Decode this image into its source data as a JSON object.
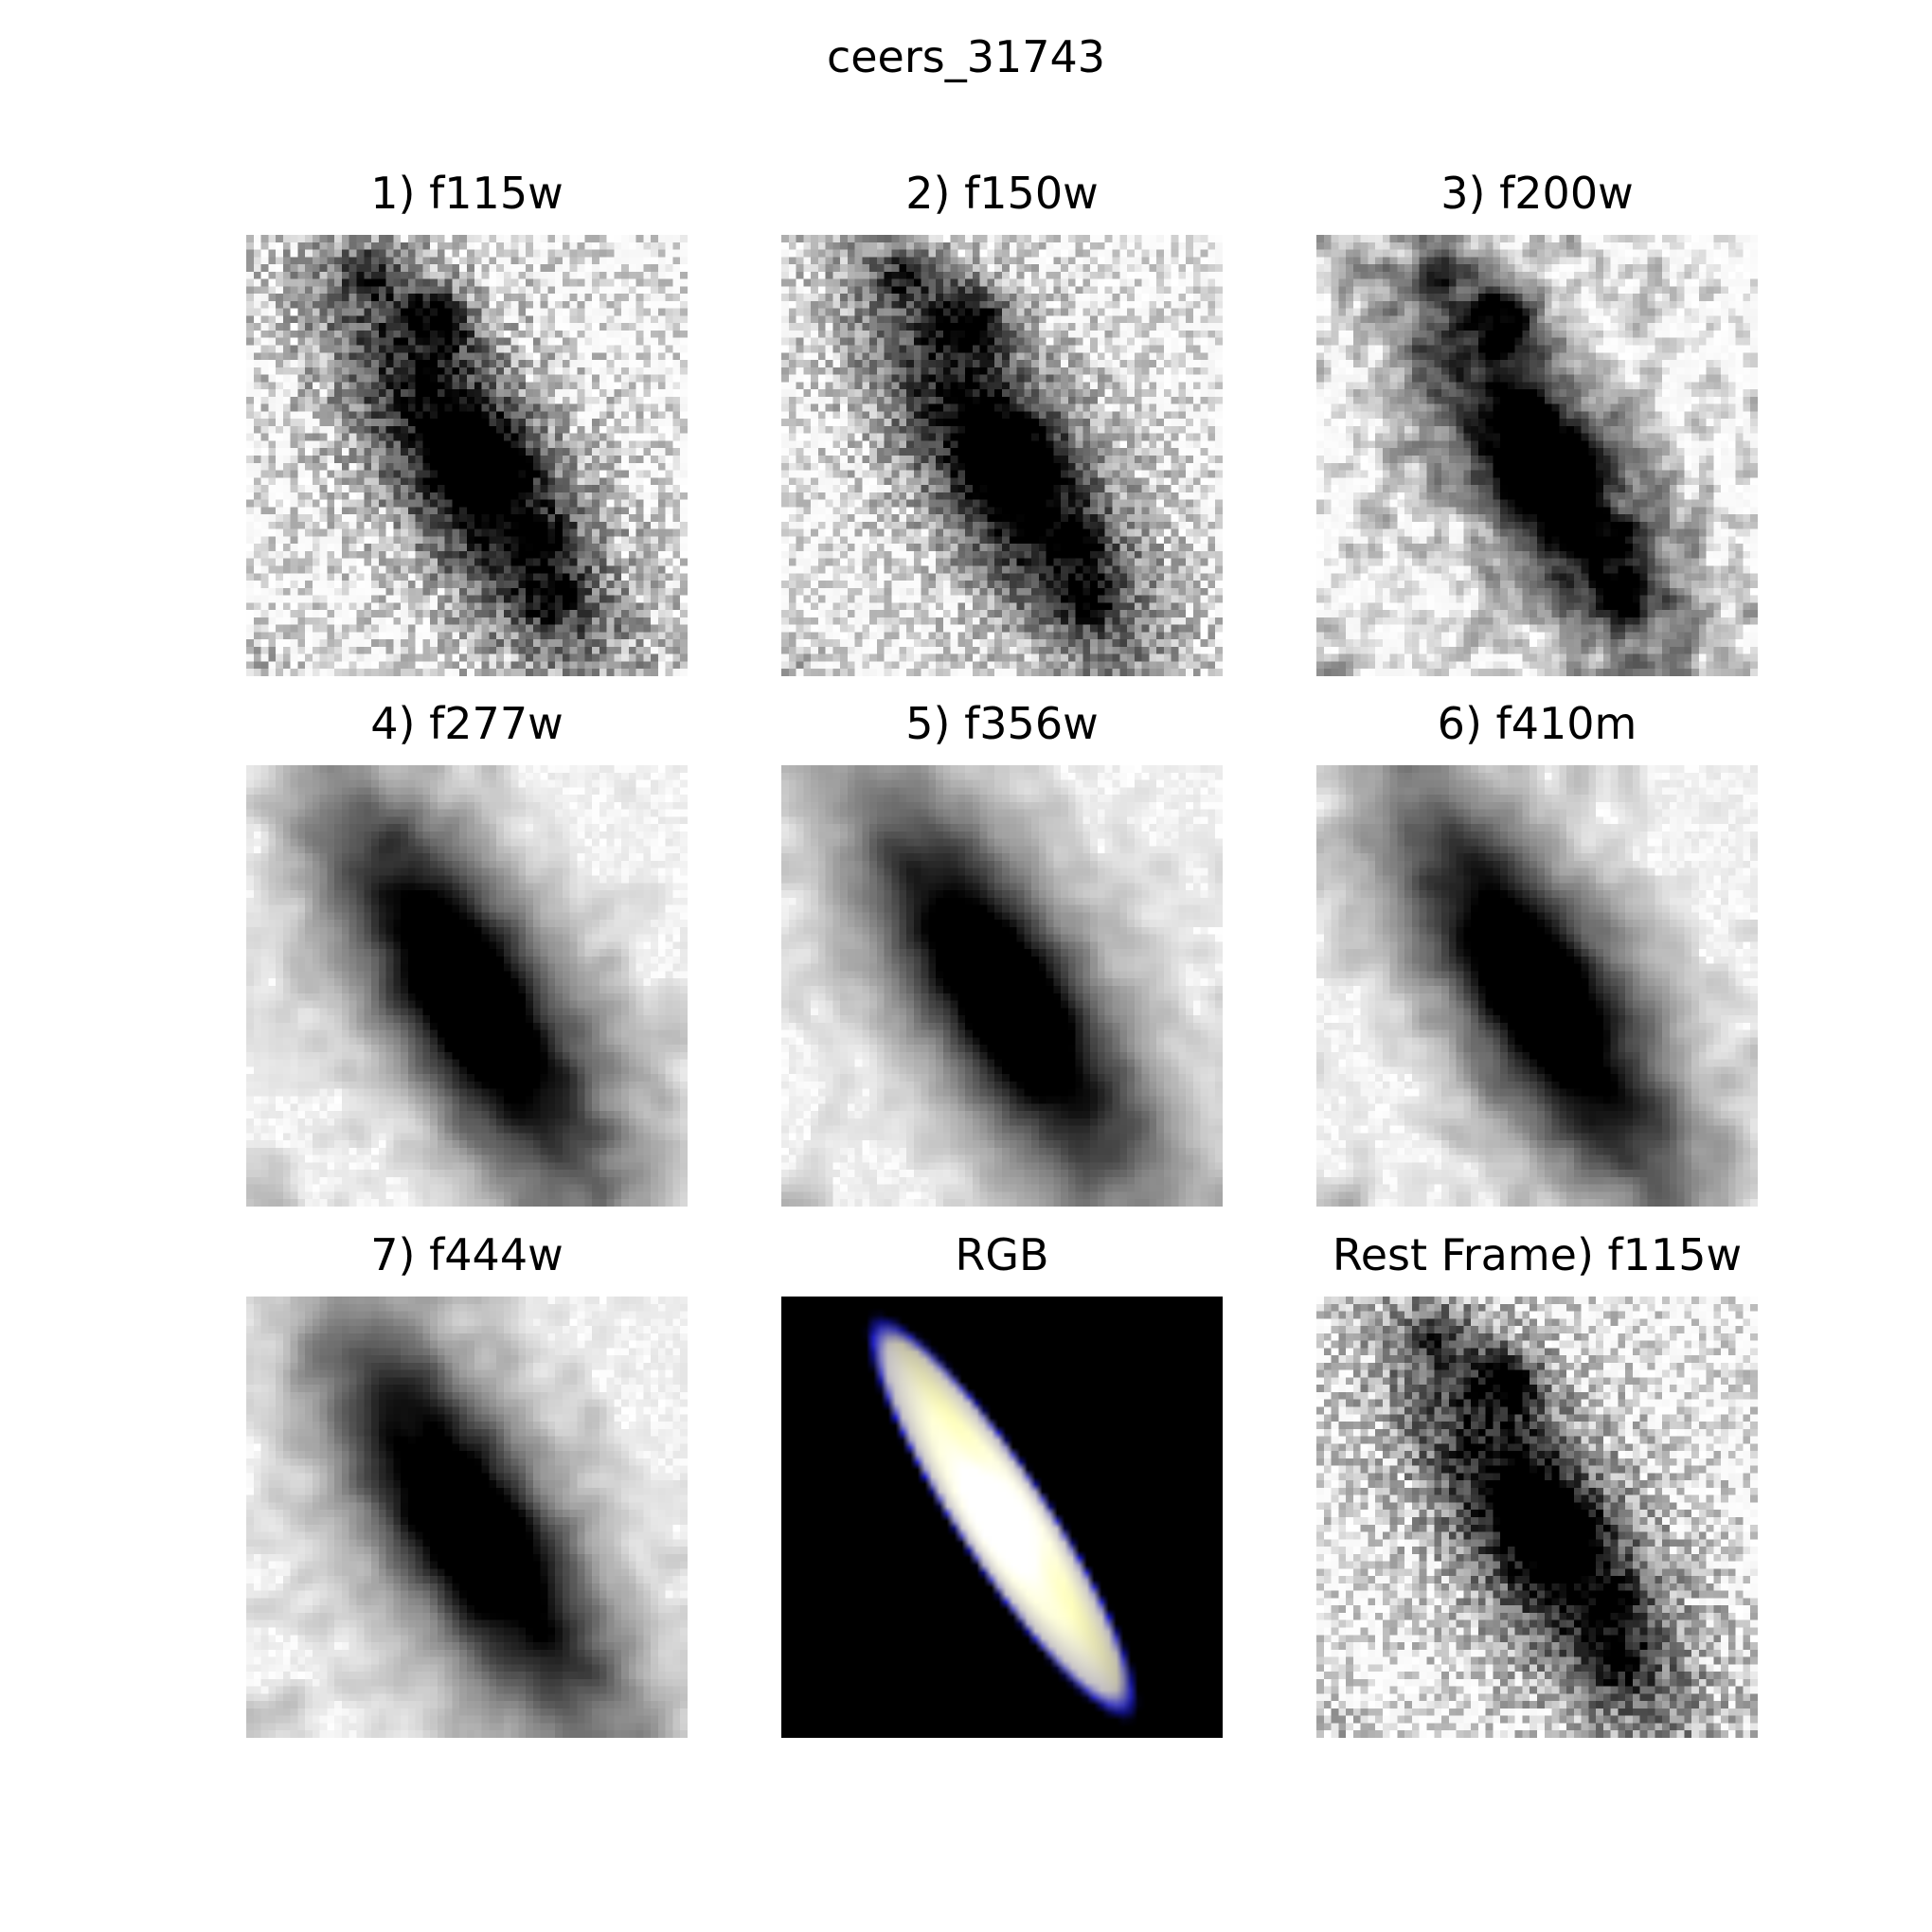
{
  "figure": {
    "title": "ceers_31743"
  },
  "panels": [
    {
      "title": "1) f115w",
      "kind": "gray",
      "clumpy": true,
      "noise": 0.5,
      "blur": 1
    },
    {
      "title": "2) f150w",
      "kind": "gray",
      "clumpy": true,
      "noise": 0.45,
      "blur": 1
    },
    {
      "title": "3) f200w",
      "kind": "gray",
      "clumpy": true,
      "noise": 0.38,
      "blur": 2
    },
    {
      "title": "4) f277w",
      "kind": "gray",
      "clumpy": false,
      "noise": 0.25,
      "blur": 3
    },
    {
      "title": "5) f356w",
      "kind": "gray",
      "clumpy": false,
      "noise": 0.22,
      "blur": 3
    },
    {
      "title": "6) f410m",
      "kind": "gray",
      "clumpy": false,
      "noise": 0.28,
      "blur": 3
    },
    {
      "title": "7) f444w",
      "kind": "gray",
      "clumpy": false,
      "noise": 0.24,
      "blur": 3
    },
    {
      "title": "RGB",
      "kind": "rgb"
    },
    {
      "title": "Rest Frame) f115w",
      "kind": "gray",
      "clumpy": true,
      "noise": 0.5,
      "blur": 1
    }
  ],
  "colors": {
    "background": "#ffffff",
    "rgb_background": "#000000",
    "rgb_core": "#fffbe8",
    "rgb_edge": "#1a1aa0"
  }
}
